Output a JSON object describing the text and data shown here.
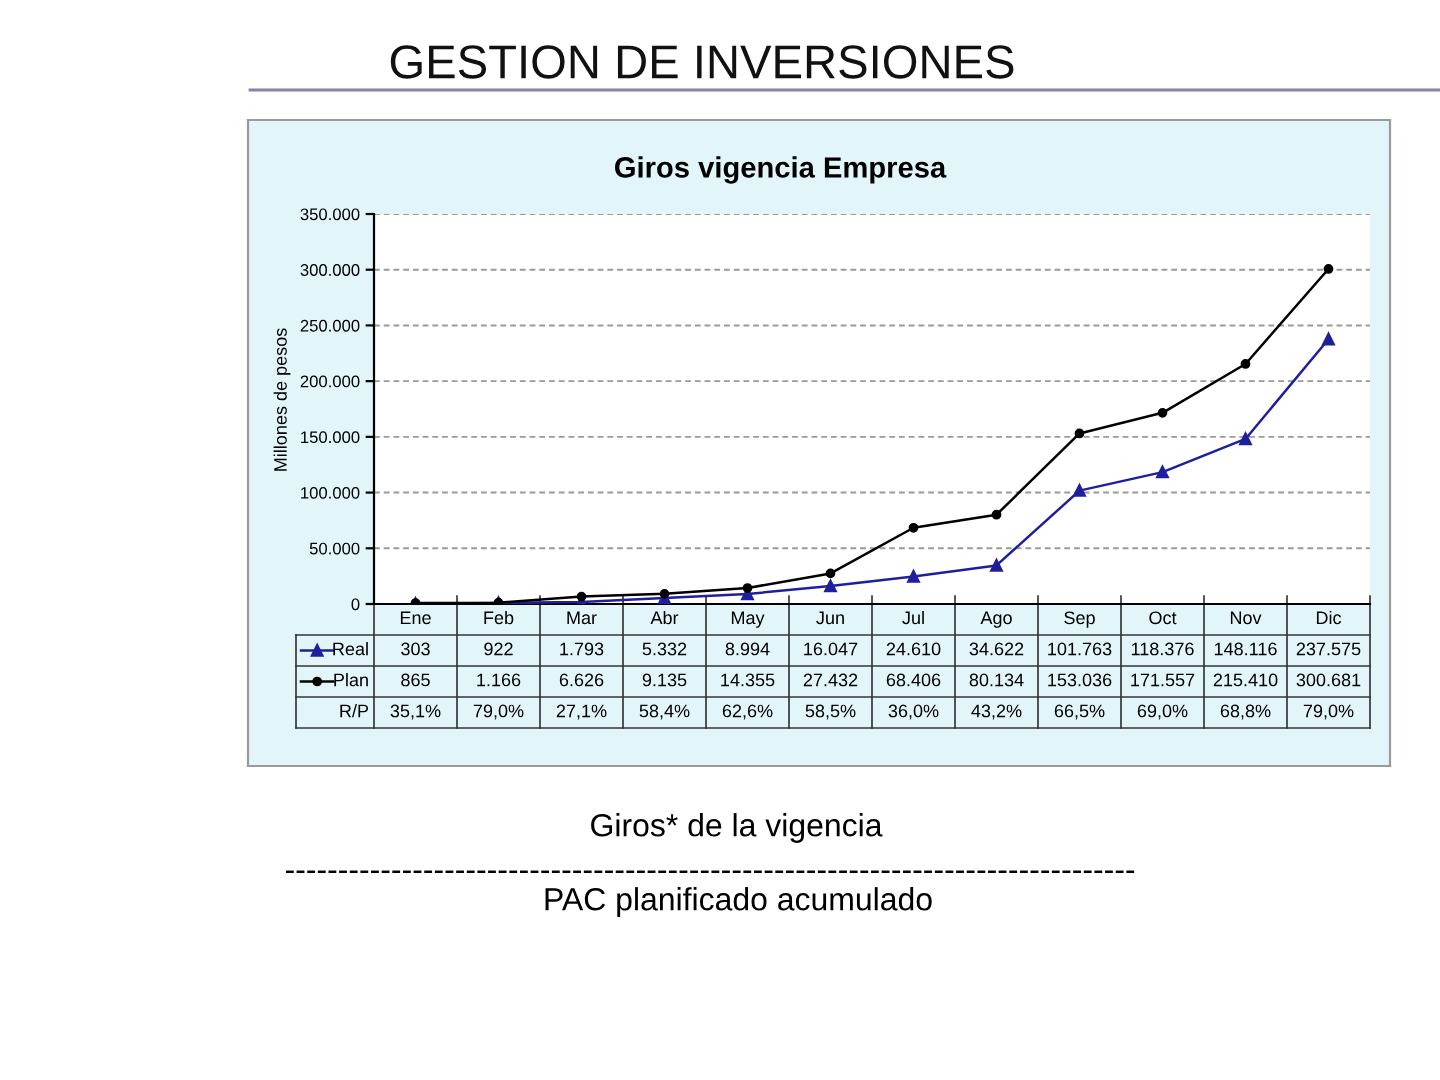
{
  "chart_data": {
    "type": "line",
    "title": "GESTION DE INVERSIONES",
    "subtitle": "Giros vigencia Empresa",
    "ylabel": "Millones de pesos",
    "categories": [
      "Ene",
      "Feb",
      "Mar",
      "Abr",
      "May",
      "Jun",
      "Jul",
      "Ago",
      "Sep",
      "Oct",
      "Nov",
      "Dic"
    ],
    "series": [
      {
        "name": "Real",
        "color": "#1f1f9c",
        "marker": "triangle",
        "values": [
          303,
          922,
          1793,
          5332,
          8994,
          16047,
          24610,
          34622,
          101763,
          118376,
          148116,
          237575
        ],
        "value_labels": [
          "303",
          "922",
          "1.793",
          "5.332",
          "8.994",
          "16.047",
          "24.610",
          "34.622",
          "101.763",
          "118.376",
          "148.116",
          "237.575"
        ]
      },
      {
        "name": "Plan",
        "color": "#000000",
        "marker": "circle",
        "values": [
          865,
          1166,
          6626,
          9135,
          14355,
          27432,
          68406,
          80134,
          153036,
          171557,
          215410,
          300681
        ],
        "value_labels": [
          "865",
          "1.166",
          "6.626",
          "9.135",
          "14.355",
          "27.432",
          "68.406",
          "80.134",
          "153.036",
          "171.557",
          "215.410",
          "300.681"
        ]
      },
      {
        "name": "R/P",
        "type": "other",
        "values": [
          null,
          null,
          null,
          null,
          null,
          null,
          null,
          null,
          null,
          null,
          null,
          null
        ],
        "value_labels": [
          "35,1%",
          "79,0%",
          "27,1%",
          "58,4%",
          "62,6%",
          "58,5%",
          "36,0%",
          "43,2%",
          "66,5%",
          "69,0%",
          "68,8%",
          "79,0%"
        ]
      }
    ],
    "ylim": [
      0,
      350000
    ],
    "yticks": [
      0,
      {
        "value": 50000,
        "label": "50.000"
      },
      {
        "value": 100000,
        "label": "100.000"
      },
      {
        "value": 150000,
        "label": "150.000"
      },
      {
        "value": 200000,
        "label": "200.000"
      },
      {
        "value": 250000,
        "label": "250.000"
      },
      {
        "value": 300000,
        "label": "300.000"
      },
      {
        "value": 350000,
        "label": "350.000"
      }
    ],
    "grid": "y",
    "legend": "bottom left",
    "annotations": [
      "Giros* de la vigencia",
      "--------------------------------------------------------------------------------",
      "PAC planificado acumulado"
    ]
  }
}
